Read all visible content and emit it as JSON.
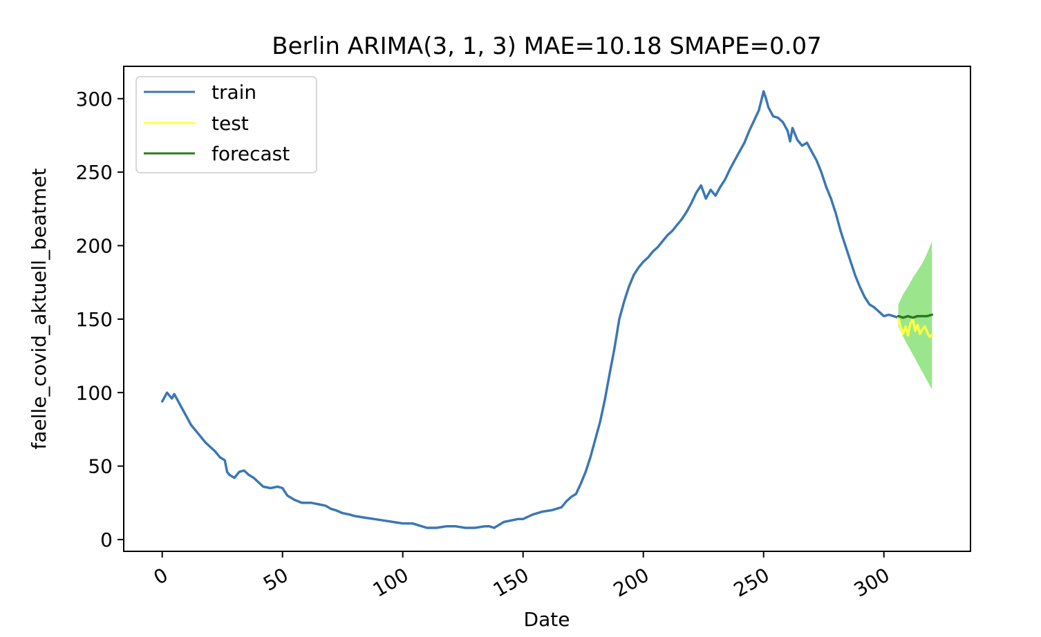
{
  "colors": {
    "train": "#3a77b5",
    "test": "#ffff44",
    "forecast": "#2c7a1f",
    "confidence": "#9be68c",
    "axis": "#000000",
    "background": "#ffffff"
  },
  "chart_data": {
    "type": "line",
    "title": "Berlin ARIMA(3, 1, 3) MAE=10.18 SMAPE=0.07",
    "xlabel": "Date",
    "ylabel": "faelle_covid_aktuell_beatmet",
    "xlim": [
      -16,
      336
    ],
    "ylim": [
      -8,
      322
    ],
    "x_ticks": [
      0,
      50,
      100,
      150,
      200,
      250,
      300
    ],
    "x_tick_labels": [
      "0",
      "50",
      "100",
      "150",
      "200",
      "250",
      "300"
    ],
    "y_ticks": [
      0,
      50,
      100,
      150,
      200,
      250,
      300
    ],
    "y_tick_labels": [
      "0",
      "50",
      "100",
      "150",
      "200",
      "250",
      "300"
    ],
    "grid": false,
    "legend": {
      "position": "upper-left",
      "entries": [
        "train",
        "test",
        "forecast"
      ]
    },
    "series": [
      {
        "name": "train",
        "color_key": "train",
        "points": [
          [
            0,
            94
          ],
          [
            2,
            100
          ],
          [
            4,
            96
          ],
          [
            5,
            99
          ],
          [
            8,
            90
          ],
          [
            10,
            84
          ],
          [
            12,
            78
          ],
          [
            15,
            72
          ],
          [
            18,
            66
          ],
          [
            20,
            63
          ],
          [
            22,
            60
          ],
          [
            24,
            56
          ],
          [
            26,
            54
          ],
          [
            27,
            46
          ],
          [
            28,
            44
          ],
          [
            30,
            42
          ],
          [
            32,
            46
          ],
          [
            34,
            47
          ],
          [
            36,
            44
          ],
          [
            38,
            42
          ],
          [
            40,
            39
          ],
          [
            42,
            36
          ],
          [
            45,
            35
          ],
          [
            48,
            36
          ],
          [
            50,
            35
          ],
          [
            52,
            30
          ],
          [
            55,
            27
          ],
          [
            58,
            25
          ],
          [
            60,
            25
          ],
          [
            62,
            25
          ],
          [
            65,
            24
          ],
          [
            68,
            23
          ],
          [
            70,
            21
          ],
          [
            72,
            20
          ],
          [
            75,
            18
          ],
          [
            78,
            17
          ],
          [
            80,
            16
          ],
          [
            84,
            15
          ],
          [
            88,
            14
          ],
          [
            92,
            13
          ],
          [
            96,
            12
          ],
          [
            100,
            11
          ],
          [
            104,
            11
          ],
          [
            108,
            9
          ],
          [
            110,
            8
          ],
          [
            114,
            8
          ],
          [
            118,
            9
          ],
          [
            122,
            9
          ],
          [
            126,
            8
          ],
          [
            130,
            8
          ],
          [
            134,
            9
          ],
          [
            136,
            9
          ],
          [
            138,
            8
          ],
          [
            140,
            10
          ],
          [
            142,
            12
          ],
          [
            145,
            13
          ],
          [
            148,
            14
          ],
          [
            150,
            14
          ],
          [
            154,
            17
          ],
          [
            158,
            19
          ],
          [
            162,
            20
          ],
          [
            166,
            22
          ],
          [
            168,
            26
          ],
          [
            170,
            29
          ],
          [
            172,
            31
          ],
          [
            174,
            38
          ],
          [
            176,
            46
          ],
          [
            178,
            56
          ],
          [
            180,
            68
          ],
          [
            182,
            80
          ],
          [
            184,
            95
          ],
          [
            186,
            113
          ],
          [
            188,
            130
          ],
          [
            190,
            150
          ],
          [
            192,
            162
          ],
          [
            194,
            172
          ],
          [
            196,
            180
          ],
          [
            198,
            185
          ],
          [
            200,
            189
          ],
          [
            202,
            192
          ],
          [
            204,
            196
          ],
          [
            206,
            199
          ],
          [
            208,
            203
          ],
          [
            210,
            207
          ],
          [
            212,
            210
          ],
          [
            214,
            214
          ],
          [
            216,
            218
          ],
          [
            218,
            223
          ],
          [
            220,
            229
          ],
          [
            222,
            236
          ],
          [
            224,
            241
          ],
          [
            226,
            232
          ],
          [
            228,
            238
          ],
          [
            230,
            234
          ],
          [
            232,
            240
          ],
          [
            234,
            245
          ],
          [
            236,
            252
          ],
          [
            238,
            258
          ],
          [
            240,
            264
          ],
          [
            242,
            270
          ],
          [
            244,
            278
          ],
          [
            246,
            285
          ],
          [
            248,
            292
          ],
          [
            250,
            305
          ],
          [
            251,
            300
          ],
          [
            252,
            294
          ],
          [
            254,
            288
          ],
          [
            256,
            287
          ],
          [
            258,
            284
          ],
          [
            260,
            278
          ],
          [
            261,
            271
          ],
          [
            262,
            280
          ],
          [
            264,
            272
          ],
          [
            266,
            268
          ],
          [
            268,
            270
          ],
          [
            270,
            264
          ],
          [
            272,
            258
          ],
          [
            274,
            250
          ],
          [
            276,
            240
          ],
          [
            278,
            232
          ],
          [
            280,
            222
          ],
          [
            282,
            210
          ],
          [
            284,
            200
          ],
          [
            286,
            190
          ],
          [
            288,
            180
          ],
          [
            290,
            172
          ],
          [
            292,
            165
          ],
          [
            294,
            160
          ],
          [
            296,
            158
          ],
          [
            298,
            155
          ],
          [
            300,
            152
          ],
          [
            302,
            153
          ],
          [
            304,
            152
          ],
          [
            306,
            151
          ]
        ]
      },
      {
        "name": "test",
        "color_key": "test",
        "points": [
          [
            306,
            151
          ],
          [
            307,
            144
          ],
          [
            308,
            140
          ],
          [
            309,
            145
          ],
          [
            310,
            139
          ],
          [
            311,
            147
          ],
          [
            312,
            150
          ],
          [
            313,
            142
          ],
          [
            314,
            146
          ],
          [
            315,
            140
          ],
          [
            316,
            143
          ],
          [
            317,
            145
          ],
          [
            318,
            141
          ],
          [
            319,
            138
          ],
          [
            320,
            139
          ]
        ]
      },
      {
        "name": "forecast",
        "color_key": "forecast",
        "points": [
          [
            306,
            152
          ],
          [
            308,
            151
          ],
          [
            310,
            152
          ],
          [
            312,
            151
          ],
          [
            314,
            152
          ],
          [
            316,
            152
          ],
          [
            318,
            152
          ],
          [
            320,
            153
          ]
        ]
      }
    ],
    "confidence_band": {
      "color_key": "confidence",
      "x": [
        306,
        308,
        310,
        312,
        314,
        316,
        318,
        320
      ],
      "upper": [
        160,
        167,
        172,
        178,
        183,
        188,
        195,
        203
      ],
      "lower": [
        145,
        138,
        132,
        126,
        120,
        114,
        108,
        102
      ]
    }
  }
}
